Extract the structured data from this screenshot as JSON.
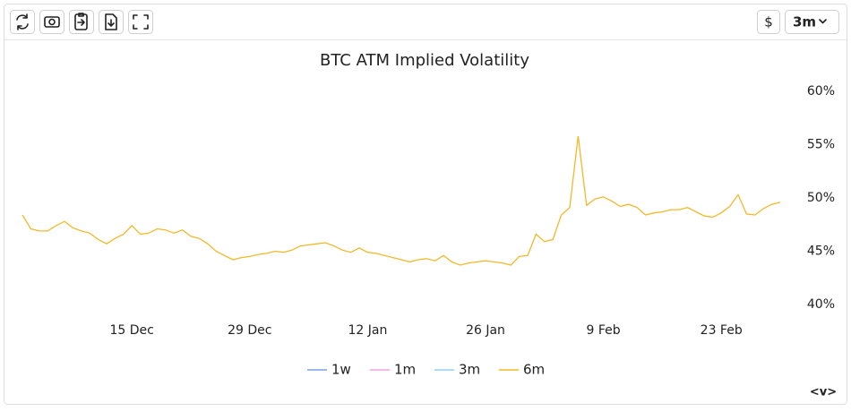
{
  "toolbar": {
    "currency": "$",
    "range": "3m"
  },
  "chart_data": {
    "type": "line",
    "title": "BTC ATM Implied Volatility",
    "x": [
      "2 Dec",
      "3 Dec",
      "4 Dec",
      "5 Dec",
      "6 Dec",
      "7 Dec",
      "8 Dec",
      "9 Dec",
      "10 Dec",
      "11 Dec",
      "12 Dec",
      "13 Dec",
      "14 Dec",
      "15 Dec",
      "16 Dec",
      "17 Dec",
      "18 Dec",
      "19 Dec",
      "20 Dec",
      "21 Dec",
      "22 Dec",
      "23 Dec",
      "24 Dec",
      "25 Dec",
      "26 Dec",
      "27 Dec",
      "28 Dec",
      "29 Dec",
      "30 Dec",
      "31 Dec",
      "1 Jan",
      "2 Jan",
      "3 Jan",
      "4 Jan",
      "5 Jan",
      "6 Jan",
      "7 Jan",
      "8 Jan",
      "9 Jan",
      "10 Jan",
      "11 Jan",
      "12 Jan",
      "13 Jan",
      "14 Jan",
      "15 Jan",
      "16 Jan",
      "17 Jan",
      "18 Jan",
      "19 Jan",
      "20 Jan",
      "21 Jan",
      "22 Jan",
      "23 Jan",
      "24 Jan",
      "25 Jan",
      "26 Jan",
      "27 Jan",
      "28 Jan",
      "29 Jan",
      "30 Jan",
      "31 Jan",
      "1 Feb",
      "2 Feb",
      "3 Feb",
      "4 Feb",
      "5 Feb",
      "6 Feb",
      "7 Feb",
      "8 Feb",
      "9 Feb",
      "10 Feb",
      "11 Feb",
      "12 Feb",
      "13 Feb",
      "14 Feb",
      "15 Feb",
      "16 Feb",
      "17 Feb",
      "18 Feb",
      "19 Feb",
      "20 Feb",
      "21 Feb",
      "22 Feb",
      "23 Feb",
      "24 Feb",
      "25 Feb",
      "26 Feb",
      "27 Feb",
      "28 Feb",
      "1 Mar",
      "2 Mar"
    ],
    "xticks": [
      "15 Dec",
      "29 Dec",
      "12 Jan",
      "26 Jan",
      "9 Feb",
      "23 Feb"
    ],
    "series": [
      {
        "name": "1w",
        "color": "#7aa0e8",
        "visible": false
      },
      {
        "name": "1m",
        "color": "#f0a6d8",
        "visible": false
      },
      {
        "name": "3m",
        "color": "#8fd3f0",
        "visible": false
      },
      {
        "name": "6m",
        "color": "#f2b92a",
        "visible": true,
        "values": [
          48.4,
          47.1,
          46.9,
          46.9,
          47.4,
          47.8,
          47.2,
          46.9,
          46.7,
          46.1,
          45.7,
          46.2,
          46.6,
          47.4,
          46.6,
          46.7,
          47.1,
          47.0,
          46.7,
          47.0,
          46.4,
          46.2,
          45.7,
          45.0,
          44.6,
          44.2,
          44.4,
          44.5,
          44.7,
          44.8,
          45.0,
          44.9,
          45.1,
          45.5,
          45.6,
          45.7,
          45.8,
          45.5,
          45.1,
          44.9,
          45.3,
          44.9,
          44.8,
          44.6,
          44.4,
          44.2,
          44.0,
          44.2,
          44.3,
          44.1,
          44.6,
          44.0,
          43.7,
          43.9,
          44.0,
          44.1,
          44.0,
          43.9,
          43.7,
          44.5,
          44.6,
          46.6,
          45.9,
          46.1,
          48.4,
          49.1,
          55.8,
          49.3,
          49.9,
          50.1,
          49.7,
          49.2,
          49.4,
          49.1,
          48.4,
          48.6,
          48.7,
          48.9,
          48.9,
          49.1,
          48.7,
          48.3,
          48.2,
          48.6,
          49.2,
          50.3,
          48.5,
          48.4,
          49.0,
          49.4,
          49.6
        ]
      }
    ],
    "ylim": [
      40,
      60
    ],
    "yticks": [
      {
        "value": 40,
        "label": "40%"
      },
      {
        "value": 45,
        "label": "45%"
      },
      {
        "value": 50,
        "label": "50%"
      },
      {
        "value": 55,
        "label": "55%"
      },
      {
        "value": 60,
        "label": "60%"
      }
    ],
    "y_axis_side": "right",
    "grid": false
  },
  "footer": {
    "nav": "<v>"
  }
}
